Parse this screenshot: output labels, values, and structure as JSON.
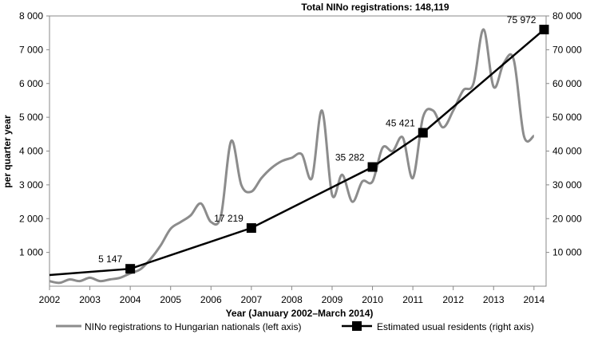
{
  "chart_data": {
    "type": "line",
    "title": "Total NINo registrations: 148,119",
    "xlabel": "Year (January 2002–March 2014)",
    "ylabel": "per quarter year",
    "x_ticks": [
      "2002",
      "2003",
      "2004",
      "2005",
      "2006",
      "2007",
      "2008",
      "2009",
      "2010",
      "2011",
      "2012",
      "2013",
      "2014"
    ],
    "y_left_ticks": [
      "1 000",
      "2 000",
      "3 000",
      "4 000",
      "5 000",
      "6 000",
      "7 000",
      "8 000"
    ],
    "y_right_ticks": [
      "10 000",
      "20 000",
      "30 000",
      "40 000",
      "50 000",
      "60 000",
      "70 000",
      "80 000"
    ],
    "ylim_left": [
      0,
      8000
    ],
    "ylim_right": [
      0,
      80000
    ],
    "xlim": [
      2002,
      2014.3
    ],
    "legend_position": "bottom",
    "colors": {
      "nino": "#8c8c8c",
      "residents": "#000000"
    },
    "series": [
      {
        "name": "NINo registrations to Hungarian nationals (left axis)",
        "axis": "left",
        "style": "smooth-line",
        "x": [
          2002.0,
          2002.25,
          2002.5,
          2002.75,
          2003.0,
          2003.25,
          2003.5,
          2003.75,
          2004.0,
          2004.25,
          2004.5,
          2004.75,
          2005.0,
          2005.25,
          2005.5,
          2005.75,
          2006.0,
          2006.25,
          2006.5,
          2006.75,
          2007.0,
          2007.25,
          2007.5,
          2007.75,
          2008.0,
          2008.25,
          2008.5,
          2008.75,
          2009.0,
          2009.25,
          2009.5,
          2009.75,
          2010.0,
          2010.25,
          2010.5,
          2010.75,
          2011.0,
          2011.25,
          2011.5,
          2011.75,
          2012.0,
          2012.25,
          2012.5,
          2012.75,
          2013.0,
          2013.25,
          2013.5,
          2013.75,
          2014.0
        ],
        "values": [
          150,
          100,
          200,
          150,
          250,
          150,
          200,
          250,
          380,
          500,
          800,
          1200,
          1700,
          1900,
          2100,
          2450,
          1900,
          2100,
          4300,
          3000,
          2800,
          3200,
          3500,
          3700,
          3800,
          3900,
          3200,
          5200,
          2700,
          3300,
          2500,
          3100,
          3100,
          4100,
          4000,
          4400,
          3200,
          5000,
          5200,
          4700,
          5200,
          5800,
          6000,
          7600,
          5900,
          6600,
          6700,
          4450,
          4450
        ]
      },
      {
        "name": "Estimated usual residents (right axis)",
        "axis": "right",
        "style": "straight-line-with-markers",
        "x": [
          2002.0,
          2004.0,
          2007.0,
          2010.0,
          2011.25,
          2014.25
        ],
        "values": [
          3300,
          5147,
          17219,
          35282,
          45421,
          75972
        ],
        "markers": [
          false,
          true,
          true,
          true,
          true,
          true
        ],
        "data_labels": [
          "",
          "5 147",
          "17 219",
          "35 282",
          "45 421",
          "75 972"
        ]
      }
    ]
  }
}
